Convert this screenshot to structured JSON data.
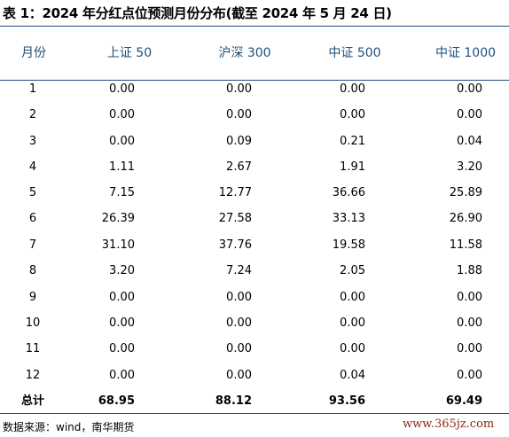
{
  "title": "表 1：2024 年分红点位预测月份分布(截至 2024 年 5 月 24 日)",
  "columns": [
    "月份",
    "上证 50",
    "沪深 300",
    "中证 500",
    "中证 1000"
  ],
  "rows": [
    [
      "1",
      "0.00",
      "0.00",
      "0.00",
      "0.00"
    ],
    [
      "2",
      "0.00",
      "0.00",
      "0.00",
      "0.00"
    ],
    [
      "3",
      "0.00",
      "0.09",
      "0.21",
      "0.04"
    ],
    [
      "4",
      "1.11",
      "2.67",
      "1.91",
      "3.20"
    ],
    [
      "5",
      "7.15",
      "12.77",
      "36.66",
      "25.89"
    ],
    [
      "6",
      "26.39",
      "27.58",
      "33.13",
      "26.90"
    ],
    [
      "7",
      "31.10",
      "37.76",
      "19.58",
      "11.58"
    ],
    [
      "8",
      "3.20",
      "7.24",
      "2.05",
      "1.88"
    ],
    [
      "9",
      "0.00",
      "0.00",
      "0.00",
      "0.00"
    ],
    [
      "10",
      "0.00",
      "0.00",
      "0.00",
      "0.00"
    ],
    [
      "11",
      "0.00",
      "0.00",
      "0.00",
      "0.00"
    ],
    [
      "12",
      "0.00",
      "0.00",
      "0.04",
      "0.00"
    ]
  ],
  "total": [
    "总计",
    "68.95",
    "88.12",
    "93.56",
    "69.49"
  ],
  "source": "数据来源：wind，南华期货",
  "watermark": "www.365jz.com",
  "colors": {
    "rule": "#1f4e79",
    "header_text": "#1f4e79",
    "watermark": "#8a2a10"
  }
}
